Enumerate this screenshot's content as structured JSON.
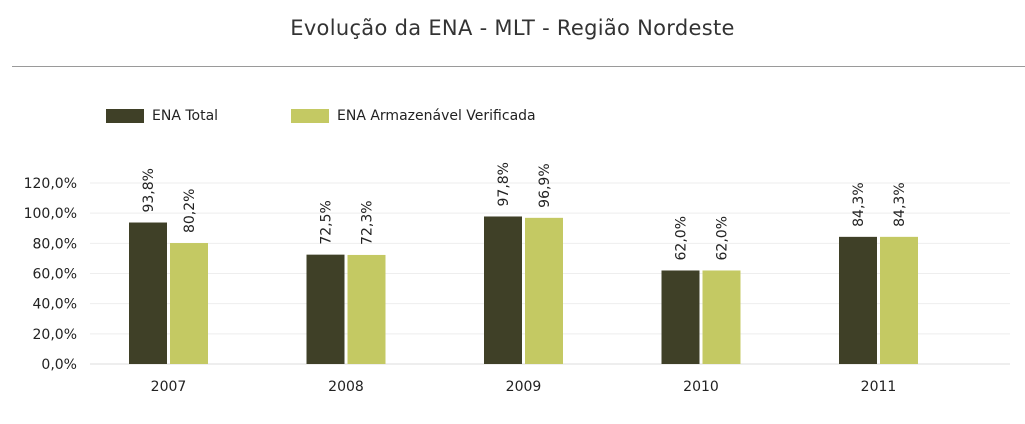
{
  "colors": {
    "ena_total": "#3f4027",
    "ena_armazenavel": "#c4c963",
    "grid": "#eeeeee",
    "axis": "#dddddd"
  },
  "chart_data": {
    "type": "bar",
    "title": "Evolução da ENA - MLT - Região Nordeste",
    "xlabel": "",
    "ylabel": "",
    "categories": [
      "2007",
      "2008",
      "2009",
      "2010",
      "2011"
    ],
    "series": [
      {
        "name": "ENA Total",
        "values": [
          93.8,
          72.5,
          97.8,
          62.0,
          84.3
        ],
        "labels": [
          "93,8%",
          "72,5%",
          "97,8%",
          "62,0%",
          "84,3%"
        ]
      },
      {
        "name": "ENA Armazenável Verificada",
        "values": [
          80.2,
          72.3,
          96.9,
          62.0,
          84.3
        ],
        "labels": [
          "80,2%",
          "72,3%",
          "96,9%",
          "62,0%",
          "84,3%"
        ]
      }
    ],
    "ylim": [
      0,
      120
    ],
    "yticks": [
      "0,0%",
      "20,0%",
      "40,0%",
      "60,0%",
      "80,0%",
      "100,0%",
      "120,0%"
    ],
    "grid": true,
    "legend": "top-left"
  }
}
